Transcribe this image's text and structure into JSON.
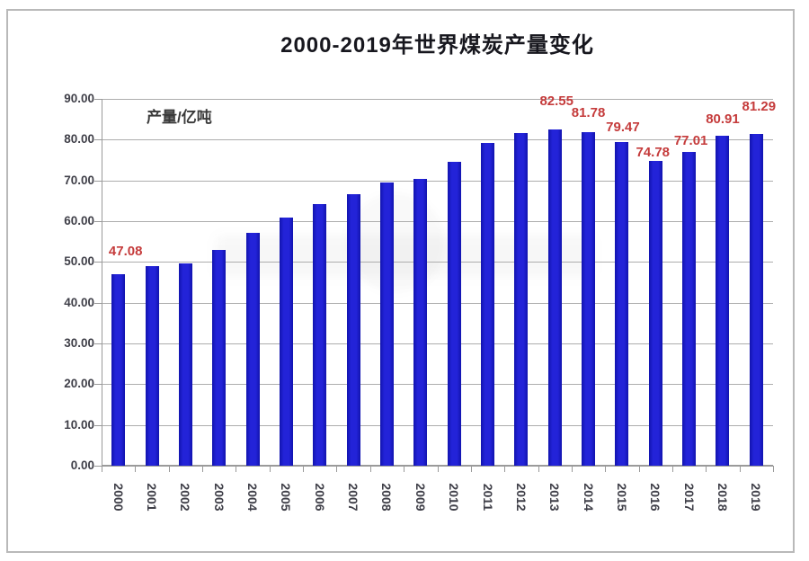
{
  "chart_data": {
    "type": "bar",
    "title": "2000-2019年世界煤炭产量变化",
    "legend": [
      {
        "label": "产量/亿吨",
        "color": "#2323d8"
      }
    ],
    "categories": [
      "2000",
      "2001",
      "2002",
      "2003",
      "2004",
      "2005",
      "2006",
      "2007",
      "2008",
      "2009",
      "2010",
      "2011",
      "2012",
      "2013",
      "2014",
      "2015",
      "2016",
      "2017",
      "2018",
      "2019"
    ],
    "values": [
      47.08,
      48.87,
      49.55,
      53.01,
      57.09,
      60.88,
      64.16,
      66.66,
      69.39,
      70.44,
      74.65,
      79.24,
      81.61,
      82.55,
      81.78,
      79.47,
      74.78,
      77.01,
      80.91,
      81.29
    ],
    "data_labels": [
      {
        "index": 0,
        "text": "47.08"
      },
      {
        "index": 13,
        "text": "82.55"
      },
      {
        "index": 14,
        "text": "81.78"
      },
      {
        "index": 15,
        "text": "79.47"
      },
      {
        "index": 16,
        "text": "74.78"
      },
      {
        "index": 17,
        "text": "77.01"
      },
      {
        "index": 18,
        "text": "80.91"
      },
      {
        "index": 19,
        "text": "81.29"
      }
    ],
    "xlabel": "",
    "ylabel": "",
    "ylim": [
      0,
      90
    ],
    "ytick_step": 10,
    "ytick_labels": [
      "0.00",
      "10.00",
      "20.00",
      "30.00",
      "40.00",
      "50.00",
      "60.00",
      "70.00",
      "80.00",
      "90.00"
    ],
    "grid": true,
    "legend_position": "top-left-inside",
    "colors": {
      "bar": "#2323d8",
      "bar_edge": "#1113ae",
      "grid": "#adadad",
      "axis": "#9a9a9a",
      "data_label": "#c53b3b",
      "tick_text": "#3f3f48",
      "title_text": "#17171e"
    }
  }
}
